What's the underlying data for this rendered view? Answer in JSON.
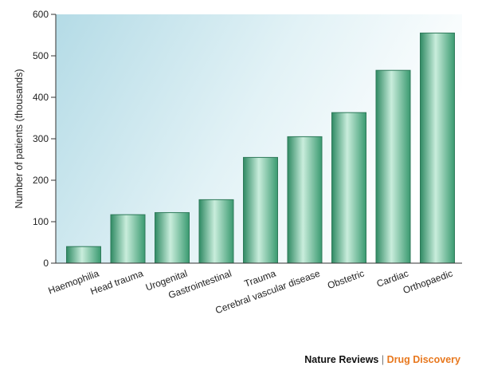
{
  "chart_data": {
    "type": "bar",
    "categories": [
      "Haemophilia",
      "Head trauma",
      "Urogenital",
      "Gastrointestinal",
      "Trauma",
      "Cerebral vascular disease",
      "Obstetric",
      "Cardiac",
      "Orthopaedic"
    ],
    "values": [
      40,
      117,
      122,
      153,
      255,
      305,
      363,
      465,
      555
    ],
    "title": "",
    "xlabel": "",
    "ylabel": "Number of patients (thousands)",
    "ylim": [
      0,
      600
    ],
    "yticks": [
      0,
      100,
      200,
      300,
      400,
      500,
      600
    ],
    "grid": false,
    "legend": "none",
    "colors": {
      "bar_fill": "#5fbf95",
      "bar_highlight": "#c9eddc",
      "bar_edge": "#2f7a5a",
      "background_left": "#b4dbe6",
      "background_right": "#ffffff"
    }
  },
  "footer": {
    "brand_primary": "Nature Reviews",
    "separator": "|",
    "brand_secondary": "Drug Discovery"
  }
}
